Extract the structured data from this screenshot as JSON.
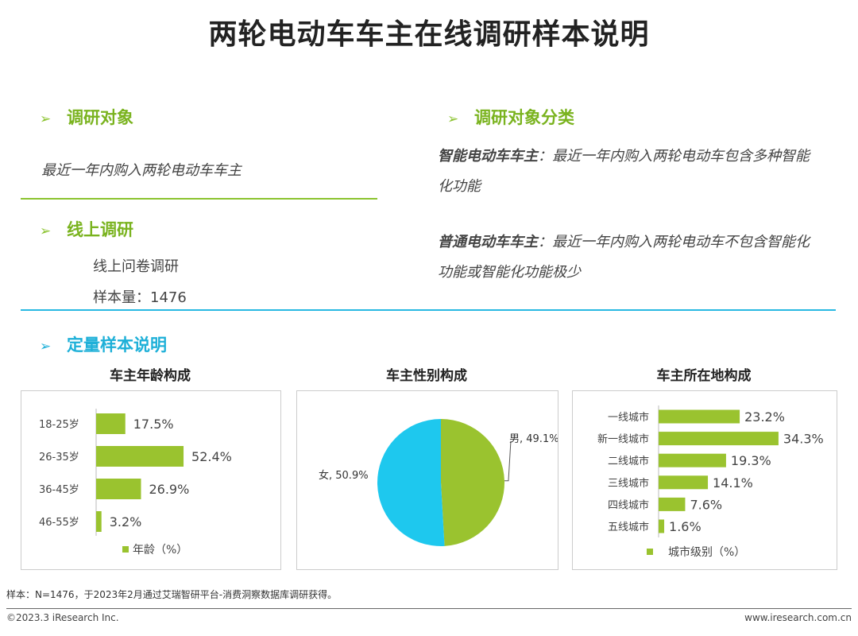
{
  "page_title": "两轮电动车车主在线调研样本说明",
  "sections": {
    "target": {
      "heading": "调研对象",
      "text": "最近一年内购入两轮电动车车主"
    },
    "online": {
      "heading": "线上调研",
      "method": "线上问卷调研",
      "sample": "样本量：1476"
    },
    "classification": {
      "heading": "调研对象分类",
      "smart_label": "智能电动车车主",
      "smart_text": "：最近一年内购入两轮电动车包含多种智能化功能",
      "normal_label": "普通电动车车主",
      "normal_text": "：最近一年内购入两轮电动车不包含智能化功能或智能化功能极少"
    },
    "quant": {
      "heading": "定量样本说明"
    }
  },
  "colors": {
    "green": "#9ac32f",
    "blue": "#1ec8ee",
    "header_green": "#7ab31f",
    "header_blue": "#1eb0d8"
  },
  "chart_data": [
    {
      "type": "bar",
      "title": "车主年龄构成",
      "orientation": "horizontal",
      "categories": [
        "18-25岁",
        "26-35岁",
        "36-45岁",
        "46-55岁"
      ],
      "values": [
        17.5,
        52.4,
        26.9,
        3.2
      ],
      "value_labels": [
        "17.5%",
        "52.4%",
        "26.9%",
        "3.2%"
      ],
      "legend": "年龄（%）"
    },
    {
      "type": "pie",
      "title": "车主性别构成",
      "labels": [
        "男",
        "女"
      ],
      "values": [
        49.1,
        50.9
      ],
      "value_labels": [
        "男, 49.1%",
        "女, 50.9%"
      ]
    },
    {
      "type": "bar",
      "title": "车主所在地构成",
      "orientation": "horizontal",
      "categories": [
        "一线城市",
        "新一线城市",
        "二线城市",
        "三线城市",
        "四线城市",
        "五线城市"
      ],
      "values": [
        23.2,
        34.3,
        19.3,
        14.1,
        7.6,
        1.6
      ],
      "value_labels": [
        "23.2%",
        "34.3%",
        "19.3%",
        "14.1%",
        "7.6%",
        "1.6%"
      ],
      "legend": "城市级别（%）"
    }
  ],
  "footnote": "样本：N=1476，于2023年2月通过艾瑞智研平台-消费洞察数据库调研获得。",
  "footer": {
    "copyright": "©2023.3 iResearch Inc.",
    "website": "www.iresearch.com.cn"
  }
}
